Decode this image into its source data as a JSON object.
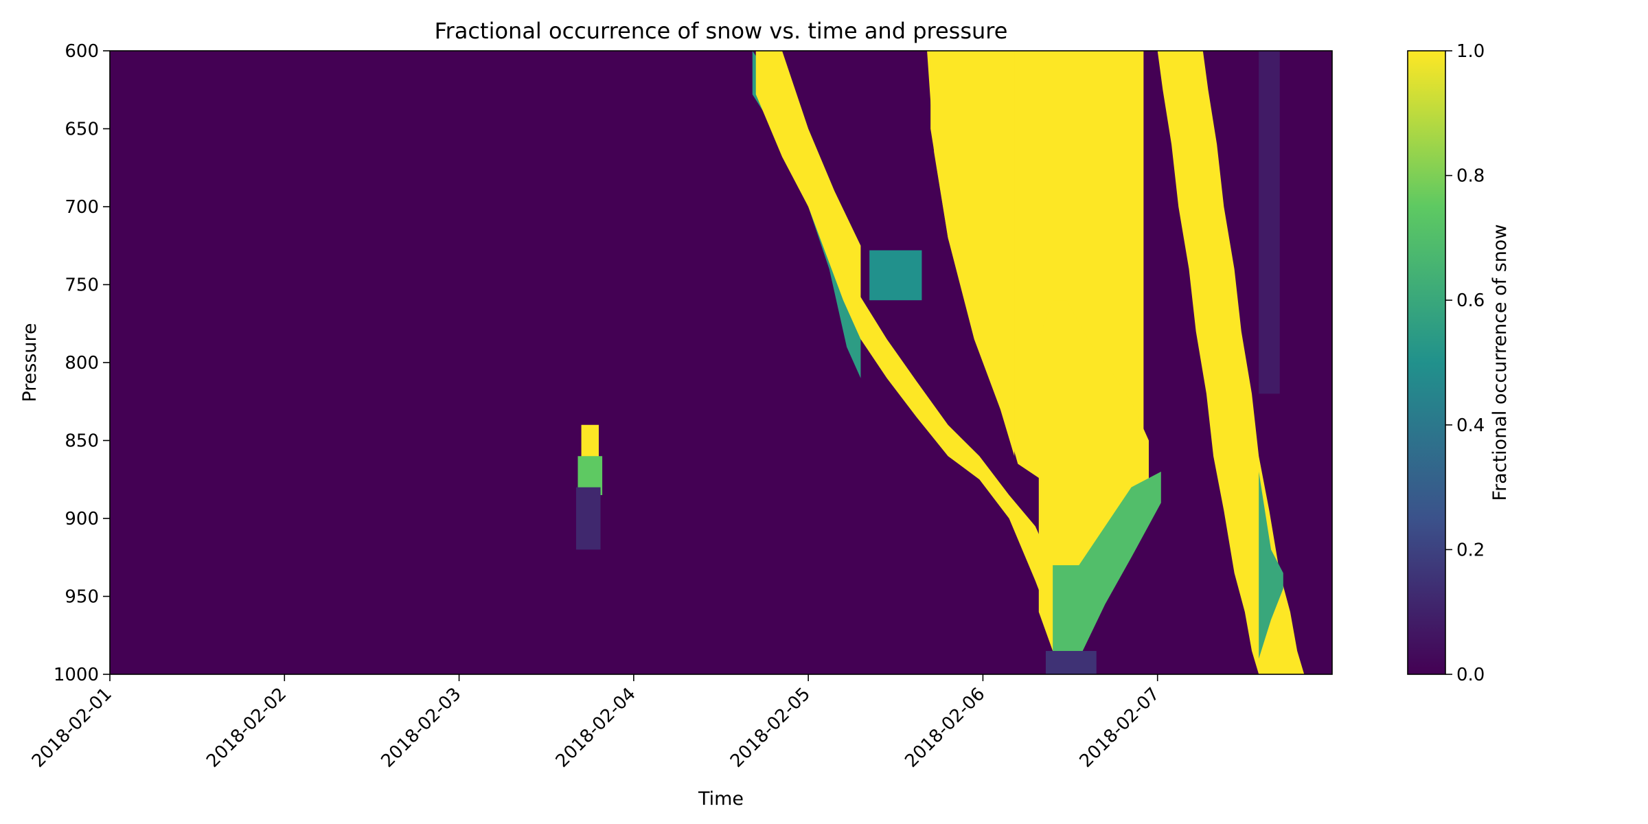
{
  "chart_data": {
    "type": "heatmap",
    "title": "Fractional occurrence of snow vs. time and pressure",
    "xlabel": "Time",
    "ylabel": "Pressure",
    "x_tick_labels": [
      "2018-02-01",
      "2018-02-02",
      "2018-02-03",
      "2018-02-04",
      "2018-02-05",
      "2018-02-06",
      "2018-02-07"
    ],
    "x_range": [
      "2018-02-01",
      "2018-02-08"
    ],
    "y_ticks": [
      600,
      650,
      700,
      750,
      800,
      850,
      900,
      950,
      1000
    ],
    "y_range": [
      600,
      1000
    ],
    "y_inverted": true,
    "colorbar": {
      "label": "Fractional occurrence of snow",
      "ticks": [
        "0.0",
        "0.2",
        "0.4",
        "0.6",
        "0.8",
        "1.0"
      ],
      "range": [
        0,
        1
      ],
      "colormap": "viridis"
    },
    "colormap_stops": [
      "#440154",
      "#3b528b",
      "#21918c",
      "#5ec962",
      "#fde725"
    ],
    "background_value": 0.0,
    "regions": [
      {
        "name": "event-1-core",
        "times": [
          2.7,
          2.8
        ],
        "p_top": [
          840,
          840
        ],
        "p_bottom": [
          865,
          865
        ],
        "value": 1.0
      },
      {
        "name": "event-1-halo",
        "times": [
          2.68,
          2.82
        ],
        "p_top": [
          860,
          860
        ],
        "p_bottom": [
          885,
          885
        ],
        "value": 0.75
      },
      {
        "name": "event-1-tail",
        "times": [
          2.67,
          2.81
        ],
        "p_top": [
          880,
          880
        ],
        "p_bottom": [
          920,
          920
        ],
        "value": 0.12
      },
      {
        "name": "band-a-fringe",
        "times": [
          3.68,
          3.85,
          4.0,
          4.12,
          4.22,
          4.3
        ],
        "p_top": [
          600,
          628,
          658,
          700,
          730,
          760
        ],
        "p_bottom": [
          628,
          658,
          700,
          740,
          790,
          810
        ],
        "value": 0.55
      },
      {
        "name": "band-a",
        "times": [
          3.7,
          3.85,
          4.0,
          4.1,
          4.2,
          4.3,
          4.45,
          4.62,
          4.8,
          4.98,
          5.15,
          5.3,
          5.42,
          5.55
        ],
        "p_top": [
          600,
          628,
          658,
          700,
          730,
          758,
          785,
          812,
          840,
          860,
          885,
          905,
          935,
          960
        ],
        "p_bottom": [
          628,
          665,
          700,
          730,
          760,
          785,
          810,
          835,
          860,
          875,
          900,
          940,
          975,
          990
        ],
        "value": 1.0
      },
      {
        "name": "band-a-right",
        "times": [
          3.7,
          3.85,
          4.0,
          4.15,
          4.3
        ],
        "p_top": [
          600,
          600,
          650,
          690,
          725
        ],
        "p_bottom": [
          628,
          668,
          700,
          735,
          760
        ],
        "value": 1.0
      },
      {
        "name": "band-b",
        "times": [
          4.68,
          4.72,
          4.8,
          4.95,
          5.1,
          5.2,
          5.4,
          5.6,
          5.8,
          5.92
        ],
        "p_top": [
          600,
          600,
          600,
          600,
          600,
          600,
          600,
          600,
          600,
          600
        ],
        "p_bottom": [
          600,
          665,
          720,
          780,
          825,
          865,
          880,
          880,
          880,
          880
        ],
        "value": 1.0
      },
      {
        "name": "band-b-yellow",
        "times": [
          4.7,
          4.8,
          4.95,
          5.1,
          5.18
        ],
        "p_top": [
          600,
          600,
          600,
          600,
          600
        ],
        "p_bottom": [
          650,
          720,
          785,
          830,
          860
        ],
        "value": 1.0
      },
      {
        "name": "connector-750",
        "times": [
          4.35,
          4.5,
          4.65
        ],
        "p_top": [
          728,
          728,
          728
        ],
        "p_bottom": [
          760,
          760,
          760
        ],
        "value": 0.5
      },
      {
        "name": "bulge",
        "times": [
          5.32,
          5.4,
          5.48,
          5.6,
          5.75,
          5.85,
          5.95
        ],
        "p_top": [
          785,
          760,
          760,
          785,
          808,
          825,
          850
        ],
        "p_bottom": [
          960,
          985,
          990,
          970,
          935,
          900,
          875
        ],
        "value": 1.0
      },
      {
        "name": "bulge-fringe",
        "times": [
          5.4,
          5.55,
          5.7,
          5.85,
          6.02
        ],
        "p_top": [
          930,
          930,
          905,
          880,
          870
        ],
        "p_bottom": [
          985,
          990,
          955,
          925,
          890
        ],
        "value": 0.7
      },
      {
        "name": "bulge-tail",
        "times": [
          5.36,
          5.45,
          5.55,
          5.65
        ],
        "p_top": [
          985,
          985,
          985,
          985
        ],
        "p_bottom": [
          1000,
          1000,
          1000,
          1000
        ],
        "value": 0.15
      },
      {
        "name": "band-c",
        "times": [
          6.0,
          6.03,
          6.08,
          6.12,
          6.18,
          6.22,
          6.28,
          6.32,
          6.38,
          6.44,
          6.5,
          6.54,
          6.58
        ],
        "p_top": [
          600,
          625,
          660,
          700,
          740,
          780,
          820,
          860,
          895,
          935,
          960,
          985,
          1000
        ],
        "p_bottom": [
          600,
          625,
          660,
          700,
          740,
          780,
          820,
          860,
          895,
          935,
          960,
          985,
          1000
        ],
        "value": 1.0
      },
      {
        "name": "band-c-fill",
        "times": [
          6.0,
          6.38,
          6.5
        ],
        "p_top": [
          600,
          600,
          600
        ],
        "p_bottom": [
          600,
          600,
          600
        ],
        "value": 1.0
      },
      {
        "name": "band-c-fringe",
        "times": [
          6.58,
          6.65,
          6.72
        ],
        "p_top": [
          870,
          920,
          935
        ],
        "p_bottom": [
          990,
          965,
          945
        ],
        "value": 0.6
      },
      {
        "name": "faint-streak",
        "times": [
          6.58,
          6.7
        ],
        "p_top": [
          600,
          600
        ],
        "p_bottom": [
          820,
          820
        ],
        "value": 0.08
      }
    ]
  }
}
